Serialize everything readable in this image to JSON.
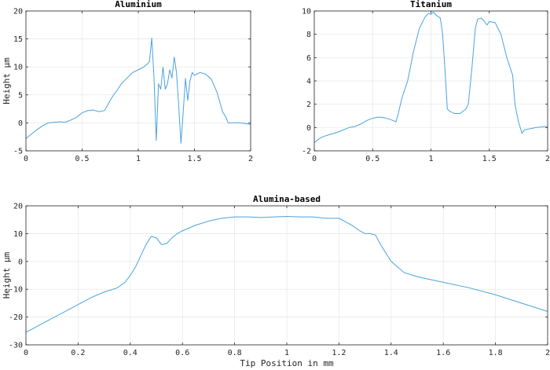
{
  "chart_data": [
    {
      "type": "line",
      "title": "Aluminium",
      "xlabel": "",
      "ylabel": "Height μm",
      "xlim": [
        0,
        2
      ],
      "ylim": [
        -5,
        20
      ],
      "xticks": [
        0,
        0.5,
        1,
        1.5,
        2
      ],
      "yticks": [
        -5,
        0,
        5,
        10,
        15,
        20
      ],
      "grid": true,
      "series": [
        {
          "x": [
            0,
            0.05,
            0.1,
            0.15,
            0.2,
            0.25,
            0.3,
            0.35,
            0.4,
            0.45,
            0.5,
            0.55,
            0.6,
            0.65,
            0.7,
            0.75,
            0.78,
            0.8,
            0.85,
            0.9,
            0.95,
            1.0,
            1.05,
            1.08,
            1.1,
            1.12,
            1.14,
            1.16,
            1.18,
            1.2,
            1.22,
            1.24,
            1.26,
            1.28,
            1.3,
            1.32,
            1.34,
            1.36,
            1.38,
            1.4,
            1.42,
            1.44,
            1.46,
            1.48,
            1.5,
            1.55,
            1.6,
            1.65,
            1.7,
            1.75,
            1.78,
            1.8,
            1.85,
            1.9,
            1.95,
            2.0
          ],
          "y": [
            -2.8,
            -2,
            -1.2,
            -0.5,
            0,
            0.1,
            0.2,
            0.1,
            0.5,
            1,
            1.8,
            2.2,
            2.3,
            2,
            2.2,
            4,
            5,
            5.5,
            7,
            8,
            9,
            9.5,
            10,
            10.5,
            11,
            15.2,
            8,
            -3.2,
            7,
            6,
            10,
            6,
            7,
            9.5,
            8,
            11.8,
            9,
            3,
            -3.7,
            2,
            8,
            4,
            7.5,
            9,
            8.5,
            9,
            8.7,
            7.8,
            5.5,
            2,
            1,
            0,
            0,
            0,
            -0.1,
            -0.3
          ]
        }
      ]
    },
    {
      "type": "line",
      "title": "Titanium",
      "xlabel": "",
      "ylabel": "",
      "xlim": [
        0,
        2
      ],
      "ylim": [
        -2,
        10
      ],
      "xticks": [
        0,
        0.5,
        1,
        1.5,
        2
      ],
      "yticks": [
        -2,
        0,
        2,
        4,
        6,
        8,
        10
      ],
      "grid": true,
      "series": [
        {
          "x": [
            0,
            0.05,
            0.1,
            0.2,
            0.3,
            0.35,
            0.4,
            0.45,
            0.5,
            0.55,
            0.6,
            0.65,
            0.7,
            0.72,
            0.75,
            0.8,
            0.85,
            0.9,
            0.95,
            0.98,
            1.0,
            1.02,
            1.05,
            1.08,
            1.1,
            1.12,
            1.14,
            1.16,
            1.2,
            1.25,
            1.3,
            1.32,
            1.35,
            1.38,
            1.4,
            1.43,
            1.45,
            1.48,
            1.5,
            1.55,
            1.58,
            1.6,
            1.65,
            1.7,
            1.72,
            1.75,
            1.78,
            1.8,
            1.9,
            2.0
          ],
          "y": [
            -1.3,
            -0.9,
            -0.7,
            -0.4,
            0,
            0.1,
            0.3,
            0.6,
            0.8,
            0.9,
            0.85,
            0.7,
            0.5,
            1.2,
            2.5,
            4,
            6.5,
            8.5,
            9.5,
            9.8,
            9.7,
            9.9,
            9.6,
            9.4,
            8,
            5,
            1.6,
            1.4,
            1.2,
            1.2,
            1.6,
            2,
            5,
            8.5,
            9.3,
            9.4,
            9.2,
            8.8,
            9.1,
            9,
            8.4,
            8,
            6,
            4.5,
            2,
            0.5,
            -0.5,
            -0.2,
            0,
            0.1
          ]
        }
      ]
    },
    {
      "type": "line",
      "title": "Alumina-based",
      "xlabel": "Tip Position in mm",
      "ylabel": "Height μm",
      "xlim": [
        0,
        2
      ],
      "ylim": [
        -30,
        20
      ],
      "xticks": [
        0,
        0.2,
        0.4,
        0.6,
        0.8,
        1,
        1.2,
        1.4,
        1.6,
        1.8,
        2
      ],
      "yticks": [
        -30,
        -20,
        -10,
        0,
        10,
        20
      ],
      "grid": true,
      "series": [
        {
          "x": [
            0,
            0.05,
            0.1,
            0.15,
            0.2,
            0.25,
            0.3,
            0.35,
            0.38,
            0.4,
            0.42,
            0.44,
            0.46,
            0.48,
            0.5,
            0.52,
            0.54,
            0.56,
            0.58,
            0.6,
            0.65,
            0.7,
            0.75,
            0.8,
            0.85,
            0.9,
            0.95,
            1.0,
            1.05,
            1.1,
            1.15,
            1.2,
            1.25,
            1.28,
            1.3,
            1.32,
            1.34,
            1.36,
            1.4,
            1.45,
            1.5,
            1.6,
            1.7,
            1.8,
            1.9,
            2.0
          ],
          "y": [
            -25.5,
            -23,
            -20.5,
            -18,
            -15.5,
            -13,
            -11,
            -9.5,
            -7.5,
            -5,
            -2,
            2,
            6,
            9,
            8.5,
            6,
            6.5,
            8.5,
            10,
            11,
            13,
            14.5,
            15.5,
            16,
            16,
            15.8,
            16,
            16.2,
            16,
            16,
            15.5,
            15.5,
            13,
            11,
            10,
            10,
            9.5,
            6,
            0,
            -4,
            -5.5,
            -7.5,
            -9.5,
            -12,
            -15,
            -18
          ]
        }
      ]
    }
  ]
}
